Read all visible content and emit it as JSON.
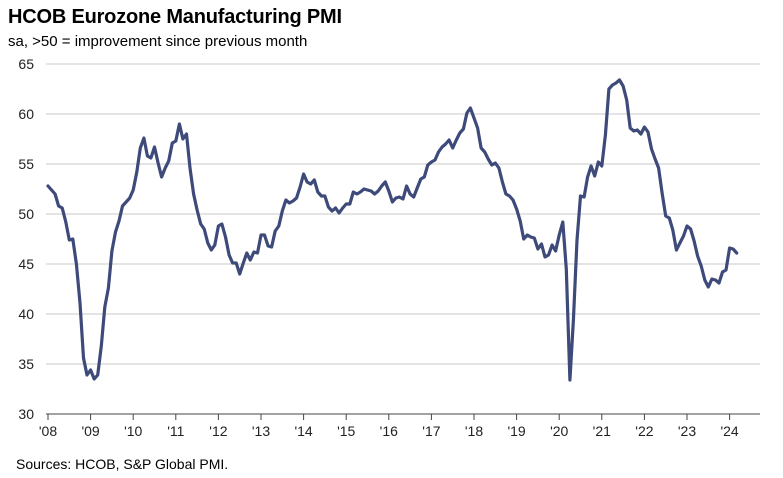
{
  "chart_title": "HCOB Eurozone Manufacturing PMI",
  "chart_subtitle": "sa, >50 = improvement  since previous month",
  "source": "Sources: HCOB,  S&P Global  PMI.",
  "colors": {
    "line": "#3d4a7a",
    "grid": "#c8c8c8",
    "axis": "#444444"
  },
  "chart_data": {
    "type": "line",
    "title": "HCOB Eurozone Manufacturing PMI",
    "subtitle": "sa, >50 = improvement  since previous month",
    "xlabel": "",
    "ylabel": "",
    "ylim": [
      30,
      65
    ],
    "yticks": [
      30,
      35,
      40,
      45,
      50,
      55,
      60,
      65
    ],
    "xlim": [
      "2008-01",
      "2024-03"
    ],
    "xticks": [
      "'08",
      "'09",
      "'10",
      "'11",
      "'12",
      "'13",
      "'14",
      "'15",
      "'16",
      "'17",
      "'18",
      "'19",
      "'20",
      "'21",
      "'22",
      "'23",
      "'24"
    ],
    "grid": "horizontal",
    "legend": "none",
    "series": [
      {
        "points": [
          [
            "2008-01",
            52.8
          ],
          [
            "2008-03",
            52.0
          ],
          [
            "2008-04",
            50.8
          ],
          [
            "2008-05",
            50.6
          ],
          [
            "2008-06",
            49.2
          ],
          [
            "2008-07",
            47.4
          ],
          [
            "2008-08",
            47.5
          ],
          [
            "2008-09",
            45.0
          ],
          [
            "2008-10",
            41.1
          ],
          [
            "2008-11",
            35.6
          ],
          [
            "2008-12",
            33.9
          ],
          [
            "2009-01",
            34.4
          ],
          [
            "2009-02",
            33.5
          ],
          [
            "2009-03",
            33.9
          ],
          [
            "2009-04",
            36.8
          ],
          [
            "2009-05",
            40.7
          ],
          [
            "2009-06",
            42.6
          ],
          [
            "2009-07",
            46.3
          ],
          [
            "2009-08",
            48.2
          ],
          [
            "2009-09",
            49.3
          ],
          [
            "2009-10",
            50.8
          ],
          [
            "2009-11",
            51.2
          ],
          [
            "2009-12",
            51.6
          ],
          [
            "2010-01",
            52.4
          ],
          [
            "2010-02",
            54.2
          ],
          [
            "2010-03",
            56.6
          ],
          [
            "2010-04",
            57.6
          ],
          [
            "2010-05",
            55.8
          ],
          [
            "2010-06",
            55.6
          ],
          [
            "2010-07",
            56.7
          ],
          [
            "2010-08",
            55.1
          ],
          [
            "2010-09",
            53.7
          ],
          [
            "2010-10",
            54.6
          ],
          [
            "2010-11",
            55.3
          ],
          [
            "2010-12",
            57.1
          ],
          [
            "2011-01",
            57.3
          ],
          [
            "2011-02",
            59.0
          ],
          [
            "2011-03",
            57.5
          ],
          [
            "2011-04",
            58.0
          ],
          [
            "2011-05",
            54.6
          ],
          [
            "2011-06",
            52.0
          ],
          [
            "2011-07",
            50.4
          ],
          [
            "2011-08",
            49.0
          ],
          [
            "2011-09",
            48.5
          ],
          [
            "2011-10",
            47.1
          ],
          [
            "2011-11",
            46.4
          ],
          [
            "2011-12",
            46.9
          ],
          [
            "2012-01",
            48.8
          ],
          [
            "2012-02",
            49.0
          ],
          [
            "2012-03",
            47.7
          ],
          [
            "2012-04",
            45.9
          ],
          [
            "2012-05",
            45.1
          ],
          [
            "2012-06",
            45.1
          ],
          [
            "2012-07",
            44.0
          ],
          [
            "2012-08",
            45.1
          ],
          [
            "2012-09",
            46.1
          ],
          [
            "2012-10",
            45.4
          ],
          [
            "2012-11",
            46.2
          ],
          [
            "2012-12",
            46.1
          ],
          [
            "2013-01",
            47.9
          ],
          [
            "2013-02",
            47.9
          ],
          [
            "2013-03",
            46.8
          ],
          [
            "2013-04",
            46.7
          ],
          [
            "2013-05",
            48.3
          ],
          [
            "2013-06",
            48.8
          ],
          [
            "2013-07",
            50.3
          ],
          [
            "2013-08",
            51.4
          ],
          [
            "2013-09",
            51.1
          ],
          [
            "2013-10",
            51.3
          ],
          [
            "2013-11",
            51.6
          ],
          [
            "2013-12",
            52.7
          ],
          [
            "2014-01",
            54.0
          ],
          [
            "2014-02",
            53.2
          ],
          [
            "2014-03",
            53.0
          ],
          [
            "2014-04",
            53.4
          ],
          [
            "2014-05",
            52.2
          ],
          [
            "2014-06",
            51.8
          ],
          [
            "2014-07",
            51.8
          ],
          [
            "2014-08",
            50.7
          ],
          [
            "2014-09",
            50.3
          ],
          [
            "2014-10",
            50.6
          ],
          [
            "2014-11",
            50.1
          ],
          [
            "2014-12",
            50.6
          ],
          [
            "2015-01",
            51.0
          ],
          [
            "2015-02",
            51.0
          ],
          [
            "2015-03",
            52.2
          ],
          [
            "2015-04",
            52.0
          ],
          [
            "2015-05",
            52.2
          ],
          [
            "2015-06",
            52.5
          ],
          [
            "2015-07",
            52.4
          ],
          [
            "2015-08",
            52.3
          ],
          [
            "2015-09",
            52.0
          ],
          [
            "2015-10",
            52.3
          ],
          [
            "2015-11",
            52.8
          ],
          [
            "2015-12",
            53.2
          ],
          [
            "2016-01",
            52.3
          ],
          [
            "2016-02",
            51.2
          ],
          [
            "2016-03",
            51.6
          ],
          [
            "2016-04",
            51.7
          ],
          [
            "2016-05",
            51.5
          ],
          [
            "2016-06",
            52.8
          ],
          [
            "2016-07",
            52.0
          ],
          [
            "2016-08",
            51.7
          ],
          [
            "2016-09",
            52.6
          ],
          [
            "2016-10",
            53.5
          ],
          [
            "2016-11",
            53.7
          ],
          [
            "2016-12",
            54.9
          ],
          [
            "2017-01",
            55.2
          ],
          [
            "2017-02",
            55.4
          ],
          [
            "2017-03",
            56.2
          ],
          [
            "2017-04",
            56.7
          ],
          [
            "2017-05",
            57.0
          ],
          [
            "2017-06",
            57.4
          ],
          [
            "2017-07",
            56.6
          ],
          [
            "2017-08",
            57.4
          ],
          [
            "2017-09",
            58.1
          ],
          [
            "2017-10",
            58.5
          ],
          [
            "2017-11",
            60.1
          ],
          [
            "2017-12",
            60.6
          ],
          [
            "2018-01",
            59.6
          ],
          [
            "2018-02",
            58.6
          ],
          [
            "2018-03",
            56.6
          ],
          [
            "2018-04",
            56.2
          ],
          [
            "2018-05",
            55.5
          ],
          [
            "2018-06",
            54.9
          ],
          [
            "2018-07",
            55.1
          ],
          [
            "2018-08",
            54.6
          ],
          [
            "2018-09",
            53.2
          ],
          [
            "2018-10",
            52.0
          ],
          [
            "2018-11",
            51.8
          ],
          [
            "2018-12",
            51.4
          ],
          [
            "2019-01",
            50.5
          ],
          [
            "2019-02",
            49.3
          ],
          [
            "2019-03",
            47.5
          ],
          [
            "2019-04",
            47.9
          ],
          [
            "2019-05",
            47.7
          ],
          [
            "2019-06",
            47.6
          ],
          [
            "2019-07",
            46.5
          ],
          [
            "2019-08",
            47.0
          ],
          [
            "2019-09",
            45.7
          ],
          [
            "2019-10",
            45.9
          ],
          [
            "2019-11",
            46.9
          ],
          [
            "2019-12",
            46.3
          ],
          [
            "2020-01",
            47.9
          ],
          [
            "2020-02",
            49.2
          ],
          [
            "2020-03",
            44.5
          ],
          [
            "2020-04",
            33.4
          ],
          [
            "2020-05",
            39.4
          ],
          [
            "2020-06",
            47.4
          ],
          [
            "2020-07",
            51.8
          ],
          [
            "2020-08",
            51.7
          ],
          [
            "2020-09",
            53.7
          ],
          [
            "2020-10",
            54.8
          ],
          [
            "2020-11",
            53.8
          ],
          [
            "2020-12",
            55.2
          ],
          [
            "2021-01",
            54.8
          ],
          [
            "2021-02",
            57.9
          ],
          [
            "2021-03",
            62.5
          ],
          [
            "2021-04",
            62.9
          ],
          [
            "2021-05",
            63.1
          ],
          [
            "2021-06",
            63.4
          ],
          [
            "2021-07",
            62.8
          ],
          [
            "2021-08",
            61.4
          ],
          [
            "2021-09",
            58.6
          ],
          [
            "2021-10",
            58.3
          ],
          [
            "2021-11",
            58.4
          ],
          [
            "2021-12",
            58.0
          ],
          [
            "2022-01",
            58.7
          ],
          [
            "2022-02",
            58.2
          ],
          [
            "2022-03",
            56.5
          ],
          [
            "2022-04",
            55.5
          ],
          [
            "2022-05",
            54.6
          ],
          [
            "2022-06",
            52.1
          ],
          [
            "2022-07",
            49.8
          ],
          [
            "2022-08",
            49.6
          ],
          [
            "2022-09",
            48.4
          ],
          [
            "2022-10",
            46.4
          ],
          [
            "2022-11",
            47.1
          ],
          [
            "2022-12",
            47.8
          ],
          [
            "2023-01",
            48.8
          ],
          [
            "2023-02",
            48.5
          ],
          [
            "2023-03",
            47.3
          ],
          [
            "2023-04",
            45.8
          ],
          [
            "2023-05",
            44.8
          ],
          [
            "2023-06",
            43.4
          ],
          [
            "2023-07",
            42.7
          ],
          [
            "2023-08",
            43.5
          ],
          [
            "2023-09",
            43.4
          ],
          [
            "2023-10",
            43.1
          ],
          [
            "2023-11",
            44.2
          ],
          [
            "2023-12",
            44.4
          ],
          [
            "2024-01",
            46.6
          ],
          [
            "2024-02",
            46.5
          ],
          [
            "2024-03",
            46.1
          ]
        ]
      }
    ]
  }
}
